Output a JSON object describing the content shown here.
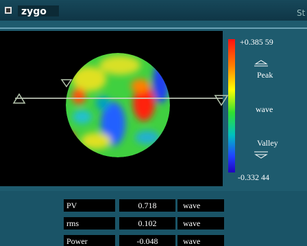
{
  "header": {
    "logo": "zygo",
    "right_text": "St"
  },
  "scale": {
    "max": "+0.385 59",
    "peak": "Peak",
    "unit": "wave",
    "valley": "Valley",
    "min": "-0.332 44"
  },
  "table": {
    "rows": [
      [
        "PV",
        "0.718",
        "wave"
      ],
      [
        "rms",
        "0.102",
        "wave"
      ],
      [
        "Power",
        "-0.048",
        "wave"
      ]
    ]
  }
}
